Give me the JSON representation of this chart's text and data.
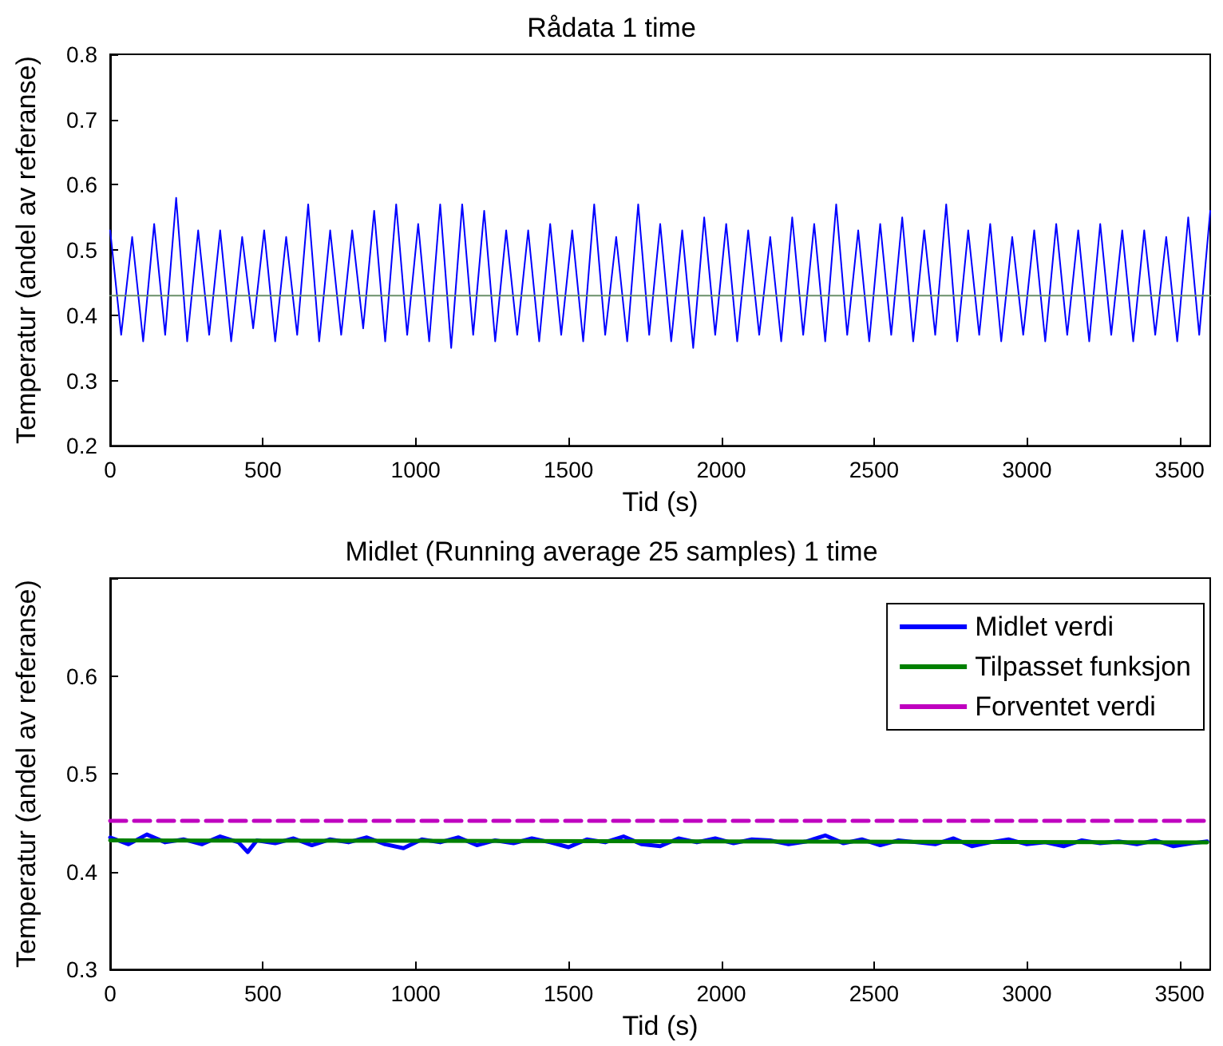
{
  "chart_data": [
    {
      "type": "line",
      "title": "Rådata 1 time",
      "xlabel": "Tid (s)",
      "ylabel": "Temperatur (andel av referanse)",
      "xlim": [
        0,
        3600
      ],
      "xticks": [
        0,
        500,
        1000,
        1500,
        2000,
        2500,
        3000,
        3500
      ],
      "ylim": [
        0.2,
        0.8
      ],
      "yticks": [
        0.2,
        0.3,
        0.4,
        0.5,
        0.6,
        0.7,
        0.8
      ],
      "grid": false,
      "legend": false,
      "marker": "none",
      "series": [
        {
          "color": "#0000ff",
          "x": [
            0,
            36,
            72,
            108,
            144,
            180,
            216,
            252,
            288,
            324,
            360,
            396,
            432,
            468,
            504,
            540,
            576,
            612,
            648,
            684,
            720,
            756,
            792,
            828,
            864,
            900,
            936,
            972,
            1008,
            1044,
            1080,
            1116,
            1152,
            1188,
            1224,
            1260,
            1296,
            1332,
            1368,
            1404,
            1440,
            1476,
            1512,
            1548,
            1584,
            1620,
            1656,
            1692,
            1728,
            1764,
            1800,
            1836,
            1872,
            1908,
            1944,
            1980,
            2016,
            2052,
            2088,
            2124,
            2160,
            2196,
            2232,
            2268,
            2304,
            2340,
            2376,
            2412,
            2448,
            2484,
            2520,
            2556,
            2592,
            2628,
            2664,
            2700,
            2736,
            2772,
            2808,
            2844,
            2880,
            2916,
            2952,
            2988,
            3024,
            3060,
            3096,
            3132,
            3168,
            3204,
            3240,
            3276,
            3312,
            3348,
            3384,
            3420,
            3456,
            3492,
            3528,
            3564,
            3600
          ],
          "values": [
            0.53,
            0.37,
            0.52,
            0.36,
            0.54,
            0.37,
            0.58,
            0.36,
            0.53,
            0.37,
            0.53,
            0.36,
            0.52,
            0.38,
            0.53,
            0.36,
            0.52,
            0.37,
            0.57,
            0.36,
            0.53,
            0.37,
            0.53,
            0.38,
            0.56,
            0.36,
            0.57,
            0.37,
            0.54,
            0.36,
            0.57,
            0.35,
            0.57,
            0.37,
            0.56,
            0.36,
            0.53,
            0.37,
            0.53,
            0.36,
            0.54,
            0.37,
            0.53,
            0.36,
            0.57,
            0.37,
            0.52,
            0.36,
            0.57,
            0.37,
            0.54,
            0.36,
            0.53,
            0.35,
            0.55,
            0.37,
            0.54,
            0.36,
            0.53,
            0.37,
            0.52,
            0.36,
            0.55,
            0.37,
            0.54,
            0.36,
            0.57,
            0.37,
            0.53,
            0.36,
            0.54,
            0.37,
            0.55,
            0.36,
            0.53,
            0.37,
            0.57,
            0.36,
            0.53,
            0.37,
            0.54,
            0.36,
            0.52,
            0.37,
            0.53,
            0.36,
            0.54,
            0.37,
            0.53,
            0.36,
            0.54,
            0.37,
            0.53,
            0.36,
            0.53,
            0.37,
            0.52,
            0.36,
            0.55,
            0.37,
            0.56
          ]
        },
        {
          "color": "#6a8f6a",
          "x": [
            0,
            3600
          ],
          "values": [
            0.43,
            0.43
          ]
        }
      ]
    },
    {
      "type": "line",
      "title": "Midlet (Running average 25 samples) 1 time",
      "xlabel": "Tid (s)",
      "ylabel": "Temperatur (andel av referanse)",
      "xlim": [
        0,
        3600
      ],
      "xticks": [
        0,
        500,
        1000,
        1500,
        2000,
        2500,
        3000,
        3500
      ],
      "ylim": [
        0.3,
        0.7
      ],
      "yticks": [
        0.3,
        0.4,
        0.5,
        0.6,
        {
          "value": 0.7,
          "label": null
        }
      ],
      "grid": false,
      "legend": "top right",
      "marker": "none",
      "series": [
        {
          "name": "Midlet verdi",
          "color": "#0000ff",
          "x": [
            0,
            60,
            120,
            180,
            240,
            300,
            360,
            420,
            450,
            480,
            540,
            600,
            660,
            720,
            780,
            840,
            900,
            960,
            1020,
            1080,
            1140,
            1200,
            1260,
            1320,
            1380,
            1440,
            1500,
            1560,
            1620,
            1680,
            1740,
            1800,
            1860,
            1920,
            1980,
            2040,
            2100,
            2160,
            2220,
            2280,
            2340,
            2400,
            2460,
            2520,
            2580,
            2640,
            2700,
            2760,
            2820,
            2880,
            2940,
            3000,
            3060,
            3120,
            3180,
            3240,
            3300,
            3360,
            3420,
            3480,
            3540,
            3590
          ],
          "values": [
            0.435,
            0.428,
            0.438,
            0.43,
            0.433,
            0.428,
            0.436,
            0.43,
            0.42,
            0.432,
            0.429,
            0.434,
            0.427,
            0.433,
            0.43,
            0.435,
            0.428,
            0.424,
            0.433,
            0.43,
            0.435,
            0.427,
            0.432,
            0.429,
            0.434,
            0.43,
            0.425,
            0.433,
            0.43,
            0.436,
            0.428,
            0.426,
            0.434,
            0.43,
            0.434,
            0.429,
            0.433,
            0.432,
            0.428,
            0.431,
            0.437,
            0.429,
            0.433,
            0.427,
            0.432,
            0.43,
            0.428,
            0.434,
            0.426,
            0.43,
            0.433,
            0.428,
            0.43,
            0.426,
            0.432,
            0.429,
            0.431,
            0.428,
            0.432,
            0.426,
            0.429,
            0.431
          ]
        },
        {
          "name": "Tilpasset funksjon",
          "color": "#008000",
          "x": [
            0,
            3590
          ],
          "values": [
            0.432,
            0.43
          ]
        },
        {
          "name": "Forventet verdi",
          "color": "#bf00bf",
          "line_style": "dashed",
          "x": [
            0,
            3590
          ],
          "values": [
            0.452,
            0.452
          ]
        }
      ]
    }
  ]
}
